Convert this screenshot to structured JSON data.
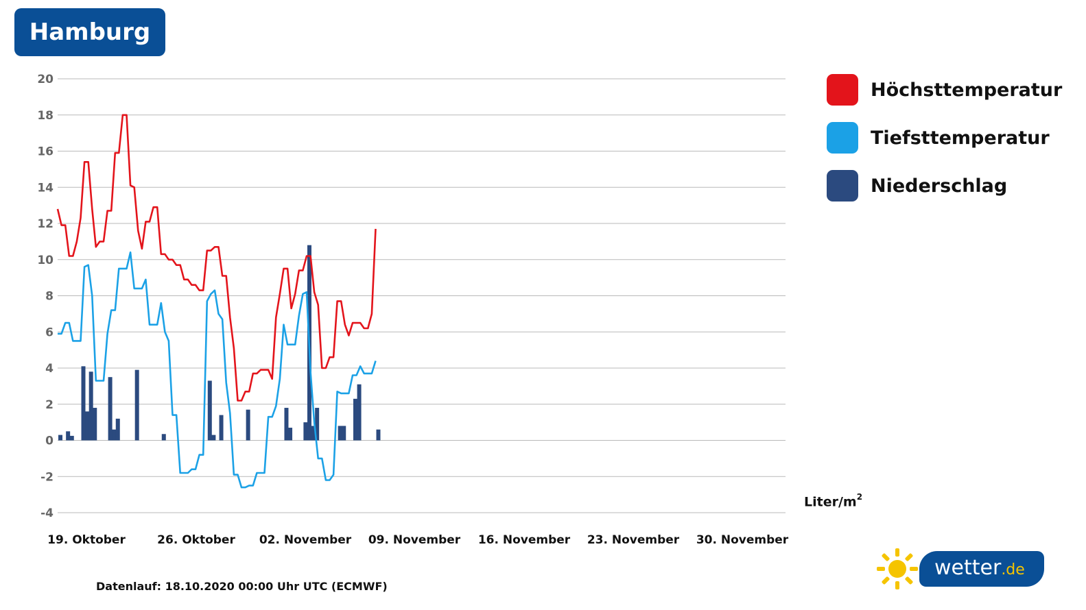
{
  "header": {
    "city": "Hamburg"
  },
  "legend": [
    {
      "label": "Höchsttemperatur",
      "color": "#e3141b"
    },
    {
      "label": "Tiefsttemperatur",
      "color": "#1ba1e6"
    },
    {
      "label": "Niederschlag",
      "color": "#2b4a7f"
    }
  ],
  "unit": {
    "base": "Liter/m",
    "exp": "2"
  },
  "footer": {
    "note": "Datenlauf: 18.10.2020 00:00 Uhr UTC (ECMWF)"
  },
  "brand": {
    "name": "wetter",
    "tld": ".de",
    "icon": "sun-icon"
  },
  "chart_data": {
    "type": "line",
    "title": "Hamburg",
    "ylim": [
      -4,
      20
    ],
    "yticks": [
      20,
      18,
      16,
      14,
      12,
      10,
      8,
      6,
      4,
      2,
      0,
      -2,
      -4
    ],
    "grid": true,
    "legend_position": "right",
    "xtick_labels": [
      "19. Oktober",
      "26. Oktober",
      "02. November",
      "09. November",
      "16. November",
      "23. November",
      "30. November"
    ],
    "x_range": [
      "2020-10-18T12:00",
      "2020-12-05T00:00"
    ],
    "series": [
      {
        "name": "Höchsttemperatur",
        "color": "#e3141b",
        "points": [
          [
            "2020-10-18T12:00",
            12.8
          ],
          [
            "2020-10-18T18:00",
            11.9
          ],
          [
            "2020-10-19T00:00",
            11.9
          ],
          [
            "2020-10-19T06:00",
            10.2
          ],
          [
            "2020-10-19T12:00",
            10.2
          ],
          [
            "2020-10-19T18:00",
            11.0
          ],
          [
            "2020-10-20T00:00",
            12.3
          ],
          [
            "2020-10-20T06:00",
            15.4
          ],
          [
            "2020-10-20T12:00",
            15.4
          ],
          [
            "2020-10-20T18:00",
            12.8
          ],
          [
            "2020-10-21T00:00",
            10.7
          ],
          [
            "2020-10-21T06:00",
            11.0
          ],
          [
            "2020-10-21T12:00",
            11.0
          ],
          [
            "2020-10-21T18:00",
            12.7
          ],
          [
            "2020-10-22T00:00",
            12.7
          ],
          [
            "2020-10-22T06:00",
            15.9
          ],
          [
            "2020-10-22T12:00",
            15.9
          ],
          [
            "2020-10-22T18:00",
            18.0
          ],
          [
            "2020-10-23T00:00",
            18.0
          ],
          [
            "2020-10-23T06:00",
            14.1
          ],
          [
            "2020-10-23T12:00",
            14.0
          ],
          [
            "2020-10-23T18:00",
            11.6
          ],
          [
            "2020-10-24T00:00",
            10.6
          ],
          [
            "2020-10-24T06:00",
            12.1
          ],
          [
            "2020-10-24T12:00",
            12.1
          ],
          [
            "2020-10-24T18:00",
            12.9
          ],
          [
            "2020-10-25T00:00",
            12.9
          ],
          [
            "2020-10-25T06:00",
            10.3
          ],
          [
            "2020-10-25T12:00",
            10.3
          ],
          [
            "2020-10-25T18:00",
            10.0
          ],
          [
            "2020-10-26T00:00",
            10.0
          ],
          [
            "2020-10-26T06:00",
            9.7
          ],
          [
            "2020-10-26T12:00",
            9.7
          ],
          [
            "2020-10-26T18:00",
            8.9
          ],
          [
            "2020-10-27T00:00",
            8.9
          ],
          [
            "2020-10-27T06:00",
            8.6
          ],
          [
            "2020-10-27T12:00",
            8.6
          ],
          [
            "2020-10-27T18:00",
            8.3
          ],
          [
            "2020-10-28T00:00",
            8.3
          ],
          [
            "2020-10-28T06:00",
            10.5
          ],
          [
            "2020-10-28T12:00",
            10.5
          ],
          [
            "2020-10-28T18:00",
            10.7
          ],
          [
            "2020-10-29T00:00",
            10.7
          ],
          [
            "2020-10-29T06:00",
            9.1
          ],
          [
            "2020-10-29T12:00",
            9.1
          ],
          [
            "2020-10-29T18:00",
            6.8
          ],
          [
            "2020-10-30T00:00",
            5.1
          ],
          [
            "2020-10-30T06:00",
            2.2
          ],
          [
            "2020-10-30T12:00",
            2.2
          ],
          [
            "2020-10-30T18:00",
            2.7
          ],
          [
            "2020-10-31T00:00",
            2.7
          ],
          [
            "2020-10-31T06:00",
            3.7
          ],
          [
            "2020-10-31T12:00",
            3.7
          ],
          [
            "2020-10-31T18:00",
            3.9
          ],
          [
            "2020-11-01T00:00",
            3.9
          ],
          [
            "2020-11-01T06:00",
            3.9
          ],
          [
            "2020-11-01T12:00",
            3.4
          ],
          [
            "2020-11-01T18:00",
            6.8
          ],
          [
            "2020-11-02T00:00",
            8.1
          ],
          [
            "2020-11-02T06:00",
            9.5
          ],
          [
            "2020-11-02T12:00",
            9.5
          ],
          [
            "2020-11-02T18:00",
            7.3
          ],
          [
            "2020-11-03T00:00",
            8.1
          ],
          [
            "2020-11-03T06:00",
            9.4
          ],
          [
            "2020-11-03T12:00",
            9.4
          ],
          [
            "2020-11-03T18:00",
            10.2
          ],
          [
            "2020-11-04T00:00",
            10.2
          ],
          [
            "2020-11-04T06:00",
            8.2
          ],
          [
            "2020-11-04T12:00",
            7.5
          ],
          [
            "2020-11-04T18:00",
            4.0
          ],
          [
            "2020-11-05T00:00",
            4.0
          ],
          [
            "2020-11-05T06:00",
            4.6
          ],
          [
            "2020-11-05T12:00",
            4.6
          ],
          [
            "2020-11-05T18:00",
            7.7
          ],
          [
            "2020-11-06T00:00",
            7.7
          ],
          [
            "2020-11-06T06:00",
            6.4
          ],
          [
            "2020-11-06T12:00",
            5.8
          ],
          [
            "2020-11-06T18:00",
            6.5
          ],
          [
            "2020-11-07T00:00",
            6.5
          ],
          [
            "2020-11-07T06:00",
            6.5
          ],
          [
            "2020-11-07T12:00",
            6.2
          ],
          [
            "2020-11-07T18:00",
            6.2
          ],
          [
            "2020-11-08T00:00",
            7.0
          ],
          [
            "2020-11-08T06:00",
            11.7
          ]
        ]
      },
      {
        "name": "Tiefsttemperatur",
        "color": "#1ba1e6",
        "points": [
          [
            "2020-10-18T12:00",
            5.9
          ],
          [
            "2020-10-18T18:00",
            5.9
          ],
          [
            "2020-10-19T00:00",
            6.5
          ],
          [
            "2020-10-19T06:00",
            6.5
          ],
          [
            "2020-10-19T12:00",
            5.5
          ],
          [
            "2020-10-19T18:00",
            5.5
          ],
          [
            "2020-10-20T00:00",
            5.5
          ],
          [
            "2020-10-20T06:00",
            9.6
          ],
          [
            "2020-10-20T12:00",
            9.7
          ],
          [
            "2020-10-20T18:00",
            8.0
          ],
          [
            "2020-10-21T00:00",
            3.3
          ],
          [
            "2020-10-21T06:00",
            3.3
          ],
          [
            "2020-10-21T12:00",
            3.3
          ],
          [
            "2020-10-21T18:00",
            5.9
          ],
          [
            "2020-10-22T00:00",
            7.2
          ],
          [
            "2020-10-22T06:00",
            7.2
          ],
          [
            "2020-10-22T12:00",
            9.5
          ],
          [
            "2020-10-22T18:00",
            9.5
          ],
          [
            "2020-10-23T00:00",
            9.5
          ],
          [
            "2020-10-23T06:00",
            10.4
          ],
          [
            "2020-10-23T12:00",
            8.4
          ],
          [
            "2020-10-23T18:00",
            8.4
          ],
          [
            "2020-10-24T00:00",
            8.4
          ],
          [
            "2020-10-24T06:00",
            8.9
          ],
          [
            "2020-10-24T12:00",
            6.4
          ],
          [
            "2020-10-24T18:00",
            6.4
          ],
          [
            "2020-10-25T00:00",
            6.4
          ],
          [
            "2020-10-25T06:00",
            7.6
          ],
          [
            "2020-10-25T12:00",
            6.0
          ],
          [
            "2020-10-25T18:00",
            5.5
          ],
          [
            "2020-10-26T00:00",
            1.4
          ],
          [
            "2020-10-26T06:00",
            1.4
          ],
          [
            "2020-10-26T12:00",
            -1.8
          ],
          [
            "2020-10-26T18:00",
            -1.8
          ],
          [
            "2020-10-27T00:00",
            -1.8
          ],
          [
            "2020-10-27T06:00",
            -1.6
          ],
          [
            "2020-10-27T12:00",
            -1.6
          ],
          [
            "2020-10-27T18:00",
            -0.8
          ],
          [
            "2020-10-28T00:00",
            -0.8
          ],
          [
            "2020-10-28T06:00",
            7.7
          ],
          [
            "2020-10-28T12:00",
            8.1
          ],
          [
            "2020-10-28T18:00",
            8.3
          ],
          [
            "2020-10-29T00:00",
            7.0
          ],
          [
            "2020-10-29T06:00",
            6.7
          ],
          [
            "2020-10-29T12:00",
            3.2
          ],
          [
            "2020-10-29T18:00",
            1.5
          ],
          [
            "2020-10-30T00:00",
            -1.9
          ],
          [
            "2020-10-30T06:00",
            -1.9
          ],
          [
            "2020-10-30T12:00",
            -2.6
          ],
          [
            "2020-10-30T18:00",
            -2.6
          ],
          [
            "2020-10-31T00:00",
            -2.5
          ],
          [
            "2020-10-31T06:00",
            -2.5
          ],
          [
            "2020-10-31T12:00",
            -1.8
          ],
          [
            "2020-10-31T18:00",
            -1.8
          ],
          [
            "2020-11-01T00:00",
            -1.8
          ],
          [
            "2020-11-01T06:00",
            1.3
          ],
          [
            "2020-11-01T12:00",
            1.3
          ],
          [
            "2020-11-01T18:00",
            1.9
          ],
          [
            "2020-11-02T00:00",
            3.4
          ],
          [
            "2020-11-02T06:00",
            6.4
          ],
          [
            "2020-11-02T12:00",
            5.3
          ],
          [
            "2020-11-02T18:00",
            5.3
          ],
          [
            "2020-11-03T00:00",
            5.3
          ],
          [
            "2020-11-03T06:00",
            6.9
          ],
          [
            "2020-11-03T12:00",
            8.1
          ],
          [
            "2020-11-03T18:00",
            8.2
          ],
          [
            "2020-11-04T00:00",
            3.8
          ],
          [
            "2020-11-04T06:00",
            1.0
          ],
          [
            "2020-11-04T12:00",
            -1.0
          ],
          [
            "2020-11-04T18:00",
            -1.0
          ],
          [
            "2020-11-05T00:00",
            -2.2
          ],
          [
            "2020-11-05T06:00",
            -2.2
          ],
          [
            "2020-11-05T12:00",
            -1.9
          ],
          [
            "2020-11-05T18:00",
            2.7
          ],
          [
            "2020-11-06T00:00",
            2.6
          ],
          [
            "2020-11-06T06:00",
            2.6
          ],
          [
            "2020-11-06T12:00",
            2.6
          ],
          [
            "2020-11-06T18:00",
            3.6
          ],
          [
            "2020-11-07T00:00",
            3.6
          ],
          [
            "2020-11-07T06:00",
            4.1
          ],
          [
            "2020-11-07T12:00",
            3.7
          ],
          [
            "2020-11-07T18:00",
            3.7
          ],
          [
            "2020-11-08T00:00",
            3.7
          ],
          [
            "2020-11-08T06:00",
            4.4
          ]
        ]
      },
      {
        "name": "Niederschlag",
        "type": "bar",
        "color": "#2b4a7f",
        "points": [
          [
            "2020-10-18T12:00",
            0.3
          ],
          [
            "2020-10-19T00:00",
            0.5
          ],
          [
            "2020-10-19T06:00",
            0.25
          ],
          [
            "2020-10-20T00:00",
            4.1
          ],
          [
            "2020-10-20T06:00",
            1.6
          ],
          [
            "2020-10-20T12:00",
            3.8
          ],
          [
            "2020-10-20T18:00",
            1.8
          ],
          [
            "2020-10-21T18:00",
            3.5
          ],
          [
            "2020-10-22T00:00",
            0.6
          ],
          [
            "2020-10-22T06:00",
            1.2
          ],
          [
            "2020-10-23T12:00",
            3.9
          ],
          [
            "2020-10-25T06:00",
            0.35
          ],
          [
            "2020-10-28T06:00",
            3.3
          ],
          [
            "2020-10-28T12:00",
            0.3
          ],
          [
            "2020-10-29T00:00",
            1.4
          ],
          [
            "2020-10-30T18:00",
            1.7
          ],
          [
            "2020-11-02T06:00",
            1.8
          ],
          [
            "2020-11-02T12:00",
            0.7
          ],
          [
            "2020-11-03T12:00",
            1.0
          ],
          [
            "2020-11-03T18:00",
            10.8
          ],
          [
            "2020-11-04T00:00",
            0.8
          ],
          [
            "2020-11-04T06:00",
            1.8
          ],
          [
            "2020-11-05T18:00",
            0.8
          ],
          [
            "2020-11-06T00:00",
            0.8
          ],
          [
            "2020-11-06T18:00",
            2.3
          ],
          [
            "2020-11-07T00:00",
            3.1
          ],
          [
            "2020-11-08T06:00",
            0.6
          ]
        ]
      }
    ]
  }
}
